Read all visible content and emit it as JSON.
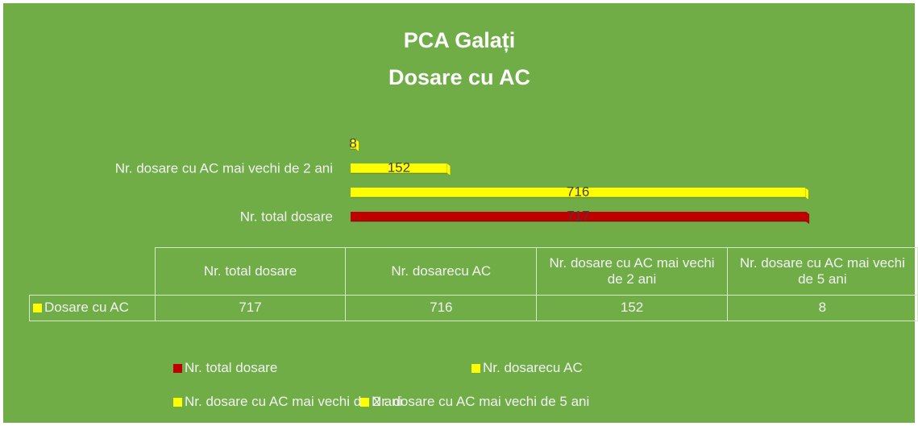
{
  "chart_data": {
    "type": "bar",
    "orientation": "horizontal",
    "title": [
      "PCA Galați",
      "Dosare cu AC"
    ],
    "categories": [
      "Nr. total dosare",
      "Nr. dosarecu AC",
      "Nr. dosare cu AC mai vechi de 2 ani",
      "Nr. dosare cu AC mai vechi de 5 ani"
    ],
    "series": [
      {
        "name": "Dosare cu AC",
        "color": "#ffff00",
        "point_colors": [
          "#c00000",
          "#ffff00",
          "#ffff00",
          "#ffff00"
        ],
        "values": [
          717,
          716,
          152,
          8
        ]
      }
    ],
    "background": "#70ad47"
  }
}
